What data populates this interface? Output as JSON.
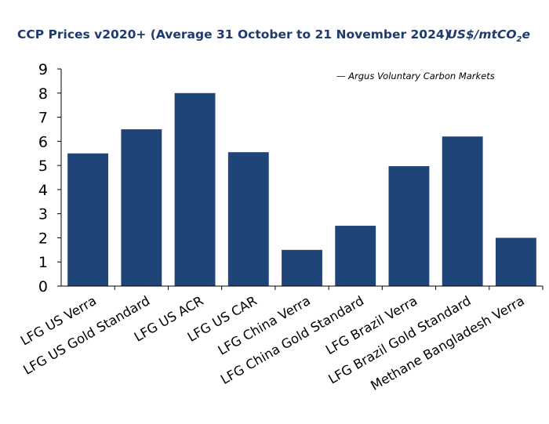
{
  "chart_data": {
    "type": "bar",
    "title": "CCP Prices v2020+ (Average 31 October to 21 November 2024)",
    "unit_label": "US$/mtCO",
    "unit_sub": "2",
    "unit_suffix": "e",
    "legend_note": "— Argus Voluntary Carbon Markets",
    "categories": [
      "LFG US Verra",
      "LFG US Gold Standard",
      "LFG US ACR",
      "LFG US CAR",
      "LFG China Verra",
      "LFG China Gold Standard",
      "LFG Brazil Verra",
      "LFG Brazil Gold Standard",
      "Methane Bangladesh Verra"
    ],
    "values": [
      5.5,
      6.5,
      8.0,
      5.55,
      1.5,
      2.5,
      4.97,
      6.2,
      2.0
    ],
    "ylim": [
      0,
      9
    ],
    "yticks": [
      "0",
      "1",
      "2",
      "3",
      "4",
      "5",
      "6",
      "7",
      "8",
      "9"
    ],
    "grid": false,
    "bar_color": "#1f4477",
    "xlabel": "",
    "ylabel": ""
  }
}
